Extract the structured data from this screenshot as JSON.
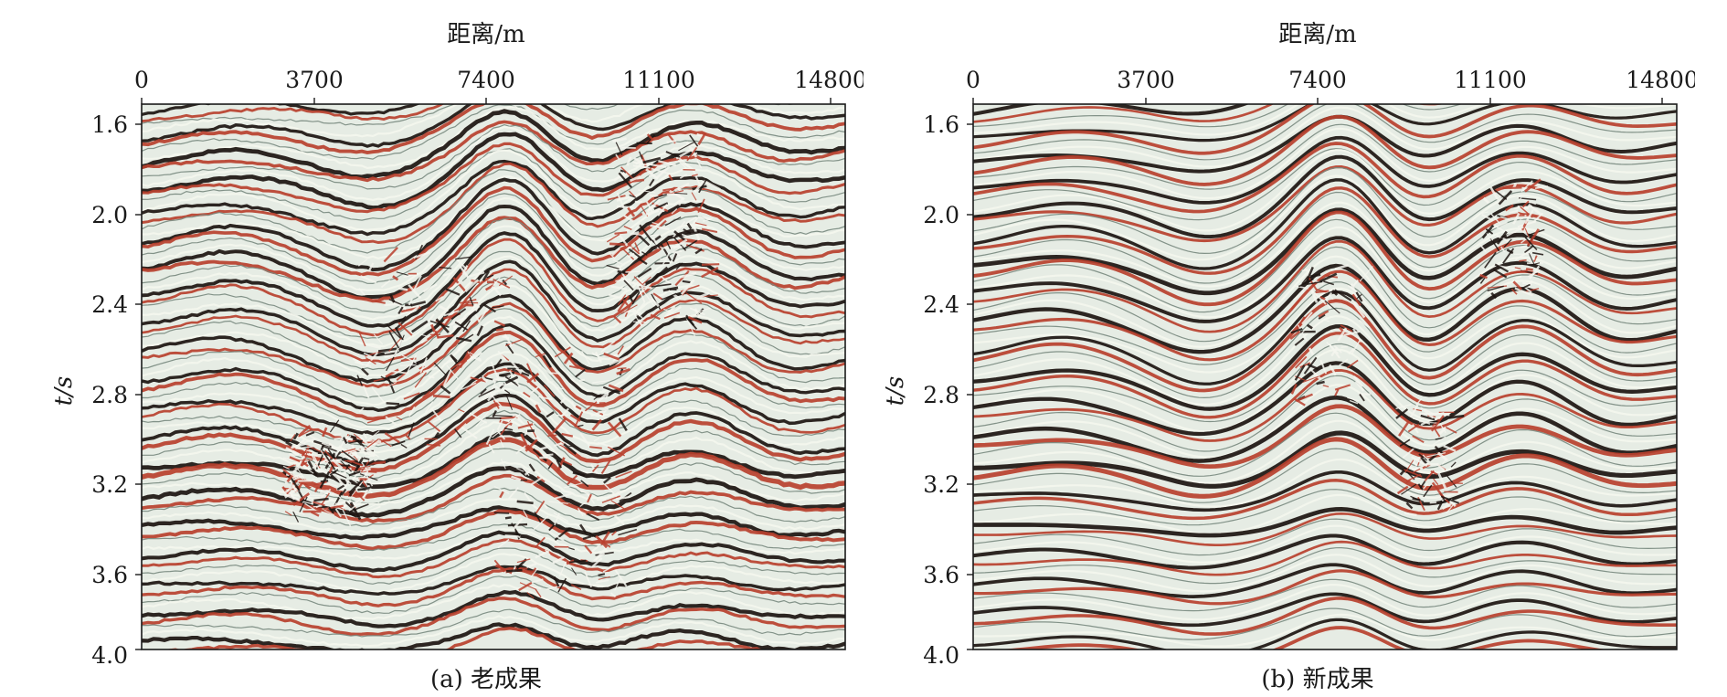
{
  "figure": {
    "panels": [
      {
        "caption": "(a) 老成果",
        "x_label": "距离/m",
        "y_label": "t/s",
        "x_ticks": [
          "0",
          "3700",
          "7400",
          "11100",
          "14800"
        ],
        "y_ticks": [
          "1.6",
          "2.0",
          "2.4",
          "2.8",
          "3.2",
          "3.6",
          "4.0"
        ]
      },
      {
        "caption": "(b) 新成果",
        "x_label": "距离/m",
        "y_label": "t/s",
        "x_ticks": [
          "0",
          "3700",
          "7400",
          "11100",
          "14800"
        ],
        "y_ticks": [
          "1.6",
          "2.0",
          "2.4",
          "2.8",
          "3.2",
          "3.6",
          "4.0"
        ]
      }
    ],
    "colors": {
      "background": "#e6ece4",
      "trough": "#1c1410",
      "peak": "#b8402e",
      "noise": "#f4f6ee"
    }
  }
}
